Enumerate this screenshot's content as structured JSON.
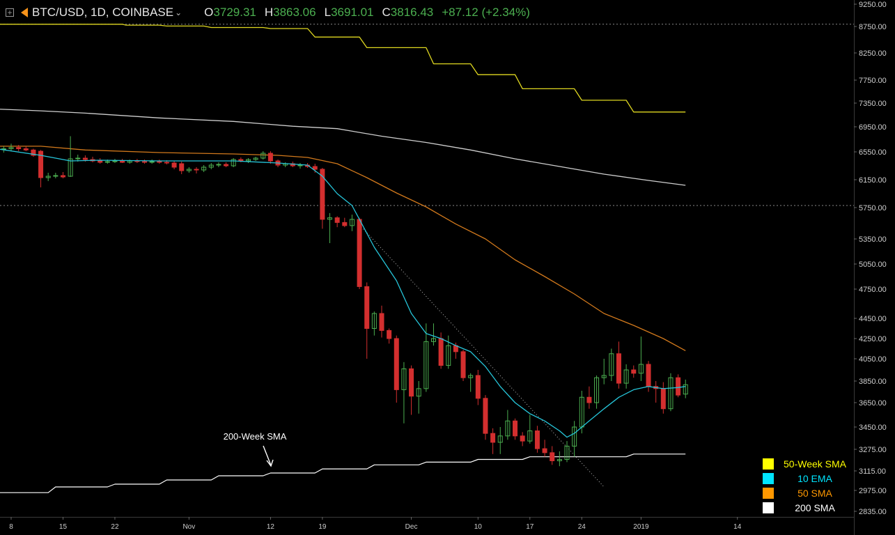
{
  "header": {
    "symbol": "BTC/USD, 1D, COINBASE",
    "open_label": "O",
    "open": "3729.31",
    "high_label": "H",
    "high": "3863.06",
    "low_label": "L",
    "low": "3691.01",
    "close_label": "C",
    "close": "3816.43",
    "change": "+87.12 (+2.34%)"
  },
  "annotation": {
    "text": "200-Week SMA"
  },
  "legend": [
    {
      "label": "50-Week SMA",
      "color": "#ffff00"
    },
    {
      "label": "10 EMA",
      "color": "#00e5ff"
    },
    {
      "label": "50 SMA",
      "color": "#ff9800"
    },
    {
      "label": "200 SMA",
      "color": "#ffffff"
    }
  ],
  "colors": {
    "up": "#4caf50",
    "down": "#d32f2f",
    "ema10": "#26c6da",
    "sma50": "#d2791c",
    "sma200": "#cfcfcf",
    "week50": "#e0d820",
    "week200": "#ffffff"
  },
  "chart_data": {
    "type": "candlestick",
    "y_ticks": [
      "9250.00",
      "8750.00",
      "8250.00",
      "7750.00",
      "7350.00",
      "6950.00",
      "6550.00",
      "6150.00",
      "5750.00",
      "5350.00",
      "5050.00",
      "4750.00",
      "4450.00",
      "4250.00",
      "4050.00",
      "3850.00",
      "3650.00",
      "3450.00",
      "3275.00",
      "3115.00",
      "2975.00",
      "2835.00"
    ],
    "x_ticks": [
      {
        "label": "8",
        "day": 0
      },
      {
        "label": "15",
        "day": 7
      },
      {
        "label": "22",
        "day": 14
      },
      {
        "label": "Nov",
        "day": 24
      },
      {
        "label": "12",
        "day": 35
      },
      {
        "label": "19",
        "day": 42
      },
      {
        "label": "Dec",
        "day": 54
      },
      {
        "label": "10",
        "day": 63
      },
      {
        "label": "17",
        "day": 70
      },
      {
        "label": "24",
        "day": 77
      },
      {
        "label": "2019",
        "day": 85
      },
      {
        "label": "14",
        "day": 98
      }
    ],
    "start_date": "2018-10-08",
    "candles": [
      {
        "d": -1,
        "o": 6590,
        "h": 6640,
        "l": 6540,
        "c": 6600
      },
      {
        "d": 0,
        "o": 6600,
        "h": 6680,
        "l": 6560,
        "c": 6620
      },
      {
        "d": 1,
        "o": 6620,
        "h": 6660,
        "l": 6560,
        "c": 6600
      },
      {
        "d": 2,
        "o": 6600,
        "h": 6640,
        "l": 6560,
        "c": 6580
      },
      {
        "d": 3,
        "o": 6580,
        "h": 6600,
        "l": 6480,
        "c": 6500
      },
      {
        "d": 4,
        "o": 6560,
        "h": 6580,
        "l": 6040,
        "c": 6180
      },
      {
        "d": 5,
        "o": 6180,
        "h": 6250,
        "l": 6130,
        "c": 6200
      },
      {
        "d": 6,
        "o": 6200,
        "h": 6250,
        "l": 6170,
        "c": 6210
      },
      {
        "d": 7,
        "o": 6210,
        "h": 6260,
        "l": 6170,
        "c": 6190
      },
      {
        "d": 8,
        "o": 6200,
        "h": 6800,
        "l": 6190,
        "c": 6450
      },
      {
        "d": 9,
        "o": 6450,
        "h": 6510,
        "l": 6410,
        "c": 6460
      },
      {
        "d": 10,
        "o": 6460,
        "h": 6500,
        "l": 6410,
        "c": 6440
      },
      {
        "d": 11,
        "o": 6440,
        "h": 6480,
        "l": 6400,
        "c": 6420
      },
      {
        "d": 12,
        "o": 6420,
        "h": 6460,
        "l": 6380,
        "c": 6400
      },
      {
        "d": 13,
        "o": 6400,
        "h": 6440,
        "l": 6380,
        "c": 6410
      },
      {
        "d": 14,
        "o": 6410,
        "h": 6450,
        "l": 6390,
        "c": 6420
      },
      {
        "d": 15,
        "o": 6420,
        "h": 6450,
        "l": 6390,
        "c": 6400
      },
      {
        "d": 16,
        "o": 6400,
        "h": 6440,
        "l": 6380,
        "c": 6420
      },
      {
        "d": 17,
        "o": 6420,
        "h": 6450,
        "l": 6390,
        "c": 6410
      },
      {
        "d": 18,
        "o": 6410,
        "h": 6440,
        "l": 6380,
        "c": 6400
      },
      {
        "d": 19,
        "o": 6400,
        "h": 6440,
        "l": 6380,
        "c": 6410
      },
      {
        "d": 20,
        "o": 6410,
        "h": 6440,
        "l": 6380,
        "c": 6400
      },
      {
        "d": 21,
        "o": 6400,
        "h": 6430,
        "l": 6370,
        "c": 6390
      },
      {
        "d": 22,
        "o": 6390,
        "h": 6420,
        "l": 6300,
        "c": 6330
      },
      {
        "d": 23,
        "o": 6380,
        "h": 6410,
        "l": 6230,
        "c": 6280
      },
      {
        "d": 24,
        "o": 6280,
        "h": 6330,
        "l": 6250,
        "c": 6300
      },
      {
        "d": 25,
        "o": 6300,
        "h": 6330,
        "l": 6240,
        "c": 6290
      },
      {
        "d": 26,
        "o": 6290,
        "h": 6360,
        "l": 6260,
        "c": 6330
      },
      {
        "d": 27,
        "o": 6330,
        "h": 6390,
        "l": 6300,
        "c": 6360
      },
      {
        "d": 28,
        "o": 6360,
        "h": 6400,
        "l": 6330,
        "c": 6370
      },
      {
        "d": 29,
        "o": 6370,
        "h": 6400,
        "l": 6330,
        "c": 6350
      },
      {
        "d": 30,
        "o": 6350,
        "h": 6460,
        "l": 6330,
        "c": 6440
      },
      {
        "d": 31,
        "o": 6440,
        "h": 6470,
        "l": 6400,
        "c": 6420
      },
      {
        "d": 32,
        "o": 6420,
        "h": 6460,
        "l": 6390,
        "c": 6440
      },
      {
        "d": 33,
        "o": 6440,
        "h": 6480,
        "l": 6420,
        "c": 6460
      },
      {
        "d": 34,
        "o": 6460,
        "h": 6560,
        "l": 6440,
        "c": 6530
      },
      {
        "d": 35,
        "o": 6530,
        "h": 6560,
        "l": 6380,
        "c": 6420
      },
      {
        "d": 36,
        "o": 6420,
        "h": 6440,
        "l": 6330,
        "c": 6360
      },
      {
        "d": 37,
        "o": 6360,
        "h": 6400,
        "l": 6330,
        "c": 6380
      },
      {
        "d": 38,
        "o": 6380,
        "h": 6410,
        "l": 6330,
        "c": 6350
      },
      {
        "d": 39,
        "o": 6350,
        "h": 6390,
        "l": 6310,
        "c": 6360
      },
      {
        "d": 40,
        "o": 6360,
        "h": 6390,
        "l": 6320,
        "c": 6340
      },
      {
        "d": 41,
        "o": 6340,
        "h": 6380,
        "l": 6250,
        "c": 6300
      },
      {
        "d": 42,
        "o": 6300,
        "h": 6320,
        "l": 5480,
        "c": 5600
      },
      {
        "d": 43,
        "o": 5600,
        "h": 5680,
        "l": 5300,
        "c": 5620
      },
      {
        "d": 44,
        "o": 5620,
        "h": 5640,
        "l": 5500,
        "c": 5560
      },
      {
        "d": 45,
        "o": 5560,
        "h": 5620,
        "l": 5500,
        "c": 5520
      },
      {
        "d": 46,
        "o": 5520,
        "h": 5660,
        "l": 5450,
        "c": 5600
      },
      {
        "d": 47,
        "o": 5600,
        "h": 5620,
        "l": 4750,
        "c": 4780
      },
      {
        "d": 48,
        "o": 4780,
        "h": 4830,
        "l": 4050,
        "c": 4350
      },
      {
        "d": 49,
        "o": 4350,
        "h": 4520,
        "l": 4280,
        "c": 4500
      },
      {
        "d": 50,
        "o": 4500,
        "h": 4580,
        "l": 4260,
        "c": 4330
      },
      {
        "d": 51,
        "o": 4330,
        "h": 4350,
        "l": 4200,
        "c": 4250
      },
      {
        "d": 52,
        "o": 4250,
        "h": 4280,
        "l": 3650,
        "c": 3770
      },
      {
        "d": 53,
        "o": 3770,
        "h": 4020,
        "l": 3480,
        "c": 3960
      },
      {
        "d": 54,
        "o": 3960,
        "h": 3990,
        "l": 3550,
        "c": 3710
      },
      {
        "d": 55,
        "o": 3710,
        "h": 3850,
        "l": 3560,
        "c": 3780
      },
      {
        "d": 56,
        "o": 3780,
        "h": 4400,
        "l": 3750,
        "c": 4220
      },
      {
        "d": 57,
        "o": 4220,
        "h": 4400,
        "l": 4180,
        "c": 4250
      },
      {
        "d": 58,
        "o": 4250,
        "h": 4310,
        "l": 3960,
        "c": 3990
      },
      {
        "d": 59,
        "o": 3990,
        "h": 4280,
        "l": 3960,
        "c": 4180
      },
      {
        "d": 60,
        "o": 4180,
        "h": 4210,
        "l": 4050,
        "c": 4120
      },
      {
        "d": 61,
        "o": 4120,
        "h": 4140,
        "l": 3850,
        "c": 3880
      },
      {
        "d": 62,
        "o": 3880,
        "h": 3920,
        "l": 3750,
        "c": 3900
      },
      {
        "d": 63,
        "o": 3900,
        "h": 3950,
        "l": 3630,
        "c": 3690
      },
      {
        "d": 64,
        "o": 3690,
        "h": 3720,
        "l": 3350,
        "c": 3400
      },
      {
        "d": 65,
        "o": 3400,
        "h": 3440,
        "l": 3240,
        "c": 3330
      },
      {
        "d": 66,
        "o": 3330,
        "h": 3450,
        "l": 3240,
        "c": 3380
      },
      {
        "d": 67,
        "o": 3380,
        "h": 3590,
        "l": 3350,
        "c": 3500
      },
      {
        "d": 68,
        "o": 3500,
        "h": 3520,
        "l": 3350,
        "c": 3380
      },
      {
        "d": 69,
        "o": 3380,
        "h": 3410,
        "l": 3300,
        "c": 3340
      },
      {
        "d": 70,
        "o": 3340,
        "h": 3550,
        "l": 3320,
        "c": 3420
      },
      {
        "d": 71,
        "o": 3420,
        "h": 3460,
        "l": 3250,
        "c": 3280
      },
      {
        "d": 72,
        "o": 3280,
        "h": 3350,
        "l": 3220,
        "c": 3250
      },
      {
        "d": 73,
        "o": 3250,
        "h": 3300,
        "l": 3160,
        "c": 3190
      },
      {
        "d": 74,
        "o": 3190,
        "h": 3260,
        "l": 3150,
        "c": 3200
      },
      {
        "d": 75,
        "o": 3200,
        "h": 3340,
        "l": 3180,
        "c": 3300
      },
      {
        "d": 76,
        "o": 3300,
        "h": 3500,
        "l": 3220,
        "c": 3450
      },
      {
        "d": 77,
        "o": 3450,
        "h": 3760,
        "l": 3400,
        "c": 3700
      },
      {
        "d": 78,
        "o": 3700,
        "h": 3800,
        "l": 3600,
        "c": 3650
      },
      {
        "d": 79,
        "o": 3650,
        "h": 3900,
        "l": 3600,
        "c": 3880
      },
      {
        "d": 80,
        "o": 3880,
        "h": 4050,
        "l": 3820,
        "c": 3900
      },
      {
        "d": 81,
        "o": 3900,
        "h": 4150,
        "l": 3850,
        "c": 4100
      },
      {
        "d": 82,
        "o": 4100,
        "h": 4220,
        "l": 3780,
        "c": 3830
      },
      {
        "d": 83,
        "o": 3830,
        "h": 4000,
        "l": 3780,
        "c": 3950
      },
      {
        "d": 84,
        "o": 3950,
        "h": 3990,
        "l": 3880,
        "c": 3920
      },
      {
        "d": 85,
        "o": 3920,
        "h": 4270,
        "l": 3850,
        "c": 4000
      },
      {
        "d": 86,
        "o": 4000,
        "h": 4030,
        "l": 3750,
        "c": 3800
      },
      {
        "d": 87,
        "o": 3800,
        "h": 3850,
        "l": 3650,
        "c": 3780
      },
      {
        "d": 88,
        "o": 3780,
        "h": 3840,
        "l": 3560,
        "c": 3600
      },
      {
        "d": 89,
        "o": 3600,
        "h": 3920,
        "l": 3580,
        "c": 3880
      },
      {
        "d": 90,
        "o": 3880,
        "h": 3910,
        "l": 3700,
        "c": 3720
      },
      {
        "d": 91,
        "o": 3729.31,
        "h": 3863.06,
        "l": 3691.01,
        "c": 3816.43
      }
    ],
    "ema10": [
      [
        -2,
        6600
      ],
      [
        4,
        6500
      ],
      [
        8,
        6420
      ],
      [
        12,
        6430
      ],
      [
        20,
        6420
      ],
      [
        30,
        6420
      ],
      [
        36,
        6390
      ],
      [
        40,
        6360
      ],
      [
        42,
        6200
      ],
      [
        44,
        5950
      ],
      [
        46,
        5780
      ],
      [
        47,
        5600
      ],
      [
        49,
        5250
      ],
      [
        52,
        4850
      ],
      [
        54,
        4500
      ],
      [
        56,
        4300
      ],
      [
        58,
        4250
      ],
      [
        60,
        4180
      ],
      [
        62,
        4120
      ],
      [
        64,
        3980
      ],
      [
        66,
        3800
      ],
      [
        68,
        3650
      ],
      [
        70,
        3560
      ],
      [
        72,
        3500
      ],
      [
        74,
        3420
      ],
      [
        75,
        3370
      ],
      [
        76,
        3400
      ],
      [
        78,
        3500
      ],
      [
        80,
        3600
      ],
      [
        82,
        3700
      ],
      [
        84,
        3770
      ],
      [
        86,
        3800
      ],
      [
        88,
        3780
      ],
      [
        90,
        3790
      ],
      [
        91,
        3800
      ]
    ],
    "sma50": [
      [
        -2,
        6640
      ],
      [
        4,
        6640
      ],
      [
        10,
        6580
      ],
      [
        20,
        6540
      ],
      [
        30,
        6520
      ],
      [
        36,
        6500
      ],
      [
        40,
        6470
      ],
      [
        44,
        6380
      ],
      [
        48,
        6180
      ],
      [
        52,
        5960
      ],
      [
        56,
        5760
      ],
      [
        60,
        5540
      ],
      [
        64,
        5350
      ],
      [
        68,
        5100
      ],
      [
        72,
        4900
      ],
      [
        76,
        4700
      ],
      [
        80,
        4500
      ],
      [
        84,
        4380
      ],
      [
        88,
        4250
      ],
      [
        91,
        4130
      ]
    ],
    "sma200": [
      [
        -2,
        7250
      ],
      [
        4,
        7220
      ],
      [
        10,
        7180
      ],
      [
        20,
        7100
      ],
      [
        30,
        7040
      ],
      [
        38,
        6960
      ],
      [
        44,
        6920
      ],
      [
        50,
        6800
      ],
      [
        56,
        6700
      ],
      [
        62,
        6580
      ],
      [
        68,
        6450
      ],
      [
        74,
        6340
      ],
      [
        80,
        6230
      ],
      [
        86,
        6140
      ],
      [
        91,
        6070
      ]
    ],
    "week50": [
      [
        -2,
        8800
      ],
      [
        15,
        8800
      ],
      [
        15.5,
        8780
      ],
      [
        20,
        8780
      ],
      [
        21,
        8760
      ],
      [
        26,
        8760
      ],
      [
        27,
        8730
      ],
      [
        34,
        8730
      ],
      [
        35,
        8710
      ],
      [
        40,
        8710
      ],
      [
        41,
        8550
      ],
      [
        47,
        8550
      ],
      [
        48,
        8350
      ],
      [
        56,
        8350
      ],
      [
        57,
        8050
      ],
      [
        62,
        8050
      ],
      [
        63,
        7850
      ],
      [
        68,
        7850
      ],
      [
        69,
        7600
      ],
      [
        76,
        7600
      ],
      [
        77,
        7400
      ],
      [
        83,
        7400
      ],
      [
        84,
        7200
      ],
      [
        91,
        7200
      ]
    ],
    "week200": [
      [
        -2,
        2960
      ],
      [
        5,
        2960
      ],
      [
        6,
        3000
      ],
      [
        13,
        3000
      ],
      [
        14,
        3020
      ],
      [
        20,
        3020
      ],
      [
        21,
        3050
      ],
      [
        27,
        3050
      ],
      [
        28,
        3080
      ],
      [
        34,
        3080
      ],
      [
        35,
        3100
      ],
      [
        41,
        3100
      ],
      [
        42,
        3130
      ],
      [
        48,
        3130
      ],
      [
        49,
        3160
      ],
      [
        55,
        3160
      ],
      [
        56,
        3180
      ],
      [
        62,
        3180
      ],
      [
        63,
        3200
      ],
      [
        69,
        3200
      ],
      [
        70,
        3220
      ],
      [
        83,
        3220
      ],
      [
        84,
        3240
      ],
      [
        91,
        3240
      ]
    ],
    "trendline": [
      [
        47,
        5530
      ],
      [
        80,
        3000
      ]
    ],
    "dashed_levels": [
      8800,
      5780
    ]
  }
}
